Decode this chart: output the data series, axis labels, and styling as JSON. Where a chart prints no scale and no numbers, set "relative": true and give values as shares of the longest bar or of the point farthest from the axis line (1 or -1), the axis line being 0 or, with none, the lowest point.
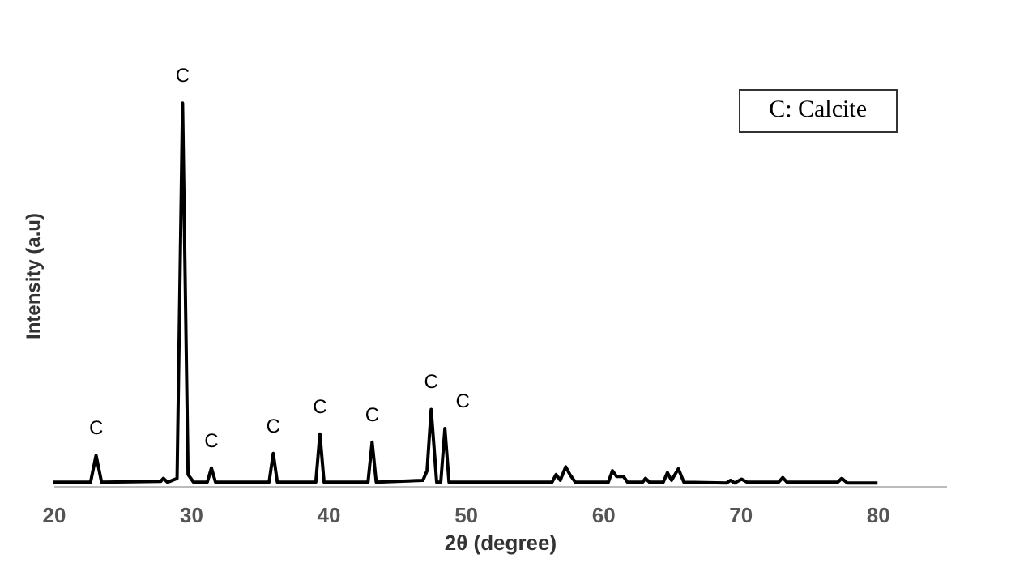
{
  "chart_data": {
    "type": "line",
    "relative": true,
    "xlabel": "2θ (degree)",
    "ylabel": "Intensity (a.u)",
    "xlim": [
      20,
      85
    ],
    "xticks": [
      20,
      30,
      40,
      50,
      60,
      70,
      80
    ],
    "grid": false,
    "marker": "none",
    "x": [
      20,
      22.7,
      23.1,
      23.5,
      27.8,
      28,
      28.3,
      29,
      29.4,
      29.8,
      30.2,
      31.2,
      31.5,
      31.8,
      35.7,
      36,
      36.3,
      39.1,
      39.4,
      39.7,
      42.9,
      43.2,
      43.5,
      46.9,
      47.2,
      47.5,
      47.9,
      48.2,
      48.5,
      48.8,
      56.3,
      56.6,
      56.9,
      57.3,
      57.6,
      58,
      60.4,
      60.7,
      61,
      61.5,
      61.8,
      62.9,
      63.1,
      63.4,
      64.4,
      64.7,
      65,
      65.5,
      65.9,
      69,
      69.3,
      69.6,
      70.1,
      70.5,
      72.8,
      73.1,
      73.4,
      77.1,
      77.4,
      77.8,
      80
    ],
    "series": [
      {
        "color": "#000000",
        "values": [
          0.01,
          0.01,
          0.08,
          0.01,
          0.012,
          0.02,
          0.01,
          0.02,
          1,
          0.03,
          0.01,
          0.01,
          0.047,
          0.01,
          0.01,
          0.085,
          0.01,
          0.01,
          0.136,
          0.01,
          0.01,
          0.115,
          0.01,
          0.015,
          0.04,
          0.2,
          0.01,
          0.01,
          0.15,
          0.01,
          0.01,
          0.03,
          0.015,
          0.05,
          0.03,
          0.01,
          0.01,
          0.04,
          0.025,
          0.025,
          0.01,
          0.01,
          0.02,
          0.01,
          0.01,
          0.035,
          0.015,
          0.045,
          0.01,
          0.008,
          0.015,
          0.008,
          0.018,
          0.01,
          0.01,
          0.022,
          0.01,
          0.01,
          0.02,
          0.008,
          0.008
        ]
      }
    ],
    "annotations": [
      {
        "text": "C",
        "x": 23.1,
        "y": 0.08
      },
      {
        "text": "C",
        "x": 29.4,
        "y": 1
      },
      {
        "text": "C",
        "x": 31.5,
        "y": 0.047
      },
      {
        "text": "C",
        "x": 36,
        "y": 0.085
      },
      {
        "text": "C",
        "x": 39.4,
        "y": 0.136
      },
      {
        "text": "C",
        "x": 43.2,
        "y": 0.115
      },
      {
        "text": "C",
        "x": 47.5,
        "y": 0.2
      },
      {
        "text": "C",
        "x": 48.5,
        "y": 0.15
      },
      "C: Calcite"
    ]
  }
}
